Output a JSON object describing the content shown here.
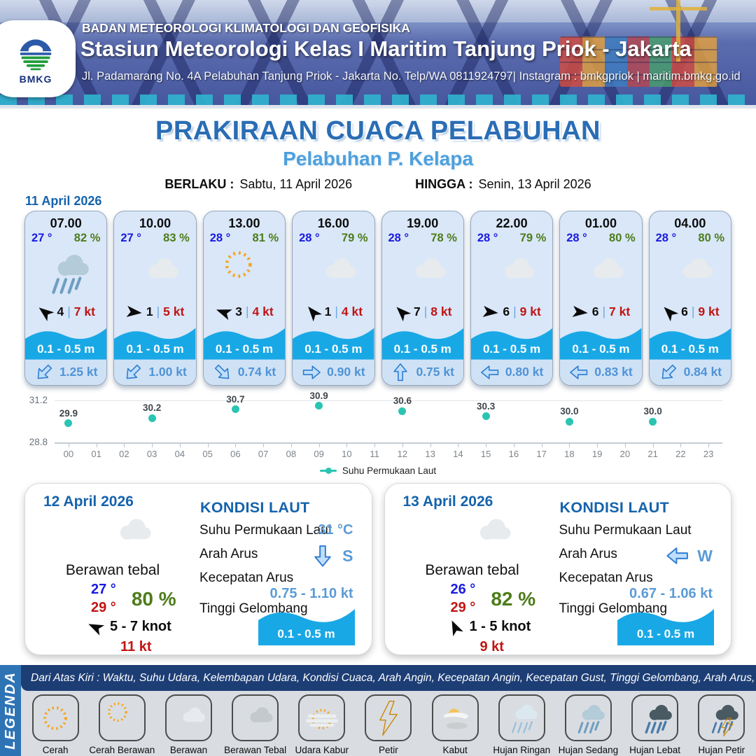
{
  "header": {
    "org": "BADAN METEOROLOGI KLIMATOLOGI DAN GEOFISIKA",
    "station": "Stasiun Meteorologi Kelas I Maritim Tanjung Priok - Jakarta",
    "address": "Jl. Padamarang No. 4A Pelabuhan Tanjung Priok - Jakarta No. Telp/WA 0811924797| Instagram : bmkgpriok | maritim.bmkg.go.id",
    "logo_text": "BMKG"
  },
  "title": {
    "main": "PRAKIRAAN CUACA PELABUHAN",
    "port": "Pelabuhan P. Kelapa",
    "berlaku_label": "BERLAKU :",
    "berlaku_value": "Sabtu, 11 April 2026",
    "hingga_label": "HINGGA :",
    "hingga_value": "Senin, 13 April 2026"
  },
  "ui": {
    "wind_sep": "|"
  },
  "day1": {
    "date": "11 April 2026",
    "cards": [
      {
        "time": "07.00",
        "temp": "27 °",
        "rh": "82 %",
        "icon": "hujan-sedang",
        "wind_deg": 218,
        "wind": "4",
        "gust": "7 kt",
        "wave": "0.1 - 0.5 m",
        "cur_deg": 135,
        "cur": "1.25 kt"
      },
      {
        "time": "10.00",
        "temp": "27 °",
        "rh": "83 %",
        "icon": "berawan",
        "wind_deg": 6,
        "wind": "1",
        "gust": "5 kt",
        "wave": "0.1 - 0.5 m",
        "cur_deg": 135,
        "cur": "1.00 kt"
      },
      {
        "time": "13.00",
        "temp": "28 °",
        "rh": "81 %",
        "icon": "cerah-berawan",
        "wind_deg": 200,
        "wind": "3",
        "gust": "4 kt",
        "wave": "0.1 - 0.5 m",
        "cur_deg": 45,
        "cur": "0.74 kt"
      },
      {
        "time": "16.00",
        "temp": "28 °",
        "rh": "79 %",
        "icon": "berawan",
        "wind_deg": 230,
        "wind": "1",
        "gust": "4 kt",
        "wave": "0.1 - 0.5 m",
        "cur_deg": 0,
        "cur": "0.90 kt"
      },
      {
        "time": "19.00",
        "temp": "28 °",
        "rh": "78 %",
        "icon": "berawan",
        "wind_deg": 225,
        "wind": "7",
        "gust": "8 kt",
        "wave": "0.1 - 0.5 m",
        "cur_deg": -90,
        "cur": "0.75 kt"
      },
      {
        "time": "22.00",
        "temp": "28 °",
        "rh": "79 %",
        "icon": "berawan",
        "wind_deg": 6,
        "wind": "6",
        "gust": "9 kt",
        "wave": "0.1 - 0.5 m",
        "cur_deg": 180,
        "cur": "0.80 kt"
      },
      {
        "time": "01.00",
        "temp": "28 °",
        "rh": "80 %",
        "icon": "berawan",
        "wind_deg": 6,
        "wind": "6",
        "gust": "7 kt",
        "wave": "0.1 - 0.5 m",
        "cur_deg": 180,
        "cur": "0.83 kt"
      },
      {
        "time": "04.00",
        "temp": "28 °",
        "rh": "80 %",
        "icon": "berawan",
        "wind_deg": 225,
        "wind": "6",
        "gust": "9 kt",
        "wave": "0.1 - 0.5 m",
        "cur_deg": 135,
        "cur": "0.84 kt"
      }
    ]
  },
  "chart_data": {
    "type": "scatter",
    "legend": "Suhu Permukaan Laut",
    "x": [
      0,
      3,
      6,
      9,
      12,
      15,
      18,
      21
    ],
    "values": [
      29.9,
      30.2,
      30.7,
      30.9,
      30.6,
      30.3,
      30.0,
      30.0
    ],
    "point_labels": [
      "29.9",
      "30.2",
      "30.7",
      "30.9",
      "30.6",
      "30.3",
      "30.0",
      "30.0"
    ],
    "x_ticks": [
      "00",
      "01",
      "02",
      "03",
      "04",
      "05",
      "06",
      "07",
      "08",
      "09",
      "10",
      "11",
      "12",
      "13",
      "14",
      "15",
      "16",
      "17",
      "18",
      "19",
      "20",
      "21",
      "22",
      "23"
    ],
    "ylim": [
      28.8,
      31.2
    ],
    "y_tick_labels": [
      "31.2",
      "28.8"
    ],
    "point_color": "#2bc4b2",
    "grid": true,
    "legend_position": "bottom-center"
  },
  "day2": {
    "date": "12 April 2026",
    "icon": "berawan",
    "weather": "Berawan tebal",
    "temp_min": "27 °",
    "temp_max": "29 °",
    "rh": "80 %",
    "wind_deg": 205,
    "wind": "5 - 7 knot",
    "gust": "11 kt",
    "sea": {
      "heading": "KONDISI LAUT",
      "sst_label": "Suhu Permukaan Laut",
      "sst": "31 °C",
      "arah_label": "Arah Arus",
      "arah_deg": 90,
      "arah_dir": "S",
      "kec_label": "Kecepatan Arus",
      "kec": "0.75 - 1.10 kt",
      "tinggi_label": "Tinggi Gelombang",
      "wave": "0.1 - 0.5 m"
    }
  },
  "day3": {
    "date": "13 April 2026",
    "icon": "berawan",
    "weather": "Berawan tebal",
    "temp_min": "26 °",
    "temp_max": "29 °",
    "rh": "82 %",
    "wind_deg": 245,
    "wind": "1 - 5 knot",
    "gust": "9 kt",
    "sea": {
      "heading": "KONDISI LAUT",
      "sst_label": "Suhu Permukaan Laut",
      "sst": "",
      "arah_label": "Arah Arus",
      "arah_deg": 180,
      "arah_dir": "W",
      "kec_label": "Kecepatan Arus",
      "kec": "0.67 - 1.06 kt",
      "tinggi_label": "Tinggi Gelombang",
      "wave": "0.1 - 0.5 m"
    }
  },
  "legend_section": {
    "sidebar": "LEGENDA",
    "strip": "Dari Atas Kiri : Waktu, Suhu Udara, Kelembapan Udara, Kondisi Cuaca, Arah Angin, Kecepatan Angin, Kecepatan Gust, Tinggi Gelombang, Arah Arus, Kecepatan Arus",
    "items": [
      {
        "label": "Cerah",
        "icon": "cerah"
      },
      {
        "label": "Cerah Berawan",
        "icon": "cerah-berawan"
      },
      {
        "label": "Berawan",
        "icon": "berawan"
      },
      {
        "label": "Berawan Tebal",
        "icon": "berawan-tebal"
      },
      {
        "label": "Udara Kabur",
        "icon": "udara-kabur"
      },
      {
        "label": "Petir",
        "icon": "petir"
      },
      {
        "label": "Kabut",
        "icon": "kabut"
      },
      {
        "label": "Hujan Ringan",
        "icon": "hujan-ringan"
      },
      {
        "label": "Hujan Sedang",
        "icon": "hujan-sedang"
      },
      {
        "label": "Hujan Lebat",
        "icon": "hujan-lebat"
      },
      {
        "label": "Hujan Petir",
        "icon": "hujan-petir"
      }
    ]
  },
  "colors": {
    "accent_blue": "#1563ac",
    "temp_blue": "#1a1adf",
    "humidity_green": "#4d7c1a",
    "gust_red": "#c11414",
    "wave_blue": "#19a8e6",
    "value_blue": "#5b9bd5",
    "chart_teal": "#2bc4b2"
  }
}
